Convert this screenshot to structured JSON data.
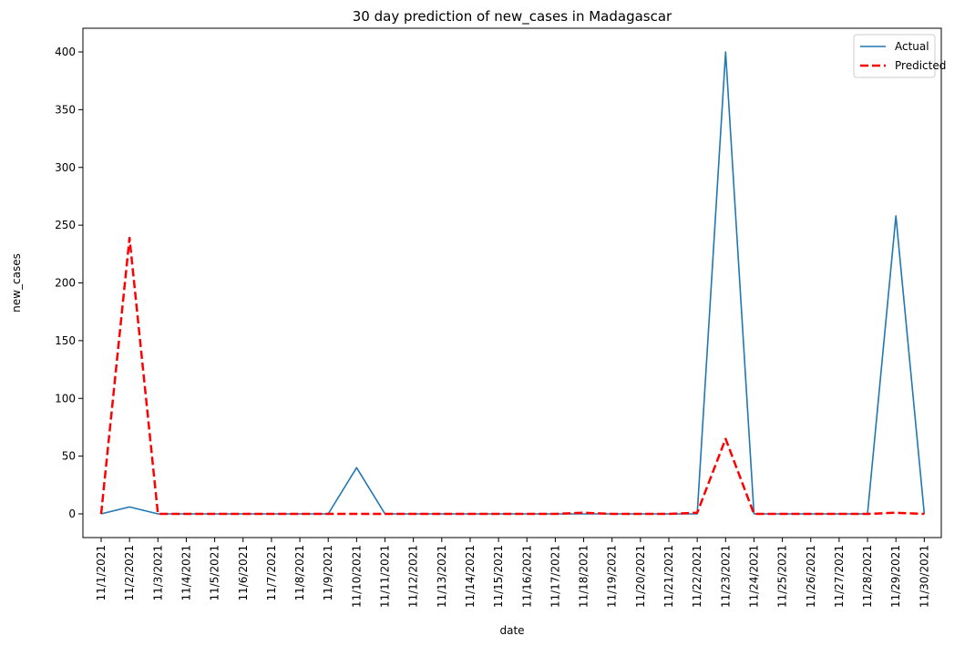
{
  "chart_data": {
    "type": "line",
    "title": "30 day prediction of new_cases in Madagascar",
    "xlabel": "date",
    "ylabel": "new_cases",
    "ylim": [
      -18,
      420
    ],
    "yticks": [
      0,
      50,
      100,
      150,
      200,
      250,
      300,
      350,
      400
    ],
    "categories": [
      "11/1/2021",
      "11/2/2021",
      "11/3/2021",
      "11/4/2021",
      "11/5/2021",
      "11/6/2021",
      "11/7/2021",
      "11/8/2021",
      "11/9/2021",
      "11/10/2021",
      "11/11/2021",
      "11/12/2021",
      "11/13/2021",
      "11/14/2021",
      "11/15/2021",
      "11/16/2021",
      "11/17/2021",
      "11/18/2021",
      "11/19/2021",
      "11/20/2021",
      "11/21/2021",
      "11/22/2021",
      "11/23/2021",
      "11/24/2021",
      "11/25/2021",
      "11/26/2021",
      "11/27/2021",
      "11/28/2021",
      "11/29/2021",
      "11/30/2021"
    ],
    "series": [
      {
        "name": "Actual",
        "color": "#1f77b4",
        "style": "solid",
        "values": [
          0,
          6,
          0,
          0,
          0,
          0,
          0,
          0,
          0,
          40,
          0,
          0,
          0,
          0,
          0,
          0,
          0,
          0,
          0,
          0,
          0,
          0,
          400,
          0,
          0,
          0,
          0,
          0,
          258,
          0
        ]
      },
      {
        "name": "Predicted",
        "color": "#ff0000",
        "style": "dashed",
        "values": [
          0,
          239,
          0,
          0,
          0,
          0,
          0,
          0,
          0,
          0,
          0,
          0,
          0,
          0,
          0,
          0,
          0,
          1,
          0,
          0,
          0,
          1,
          65,
          0,
          0,
          0,
          0,
          0,
          1,
          0
        ]
      }
    ],
    "grid": false,
    "legend_position": "top-right"
  }
}
